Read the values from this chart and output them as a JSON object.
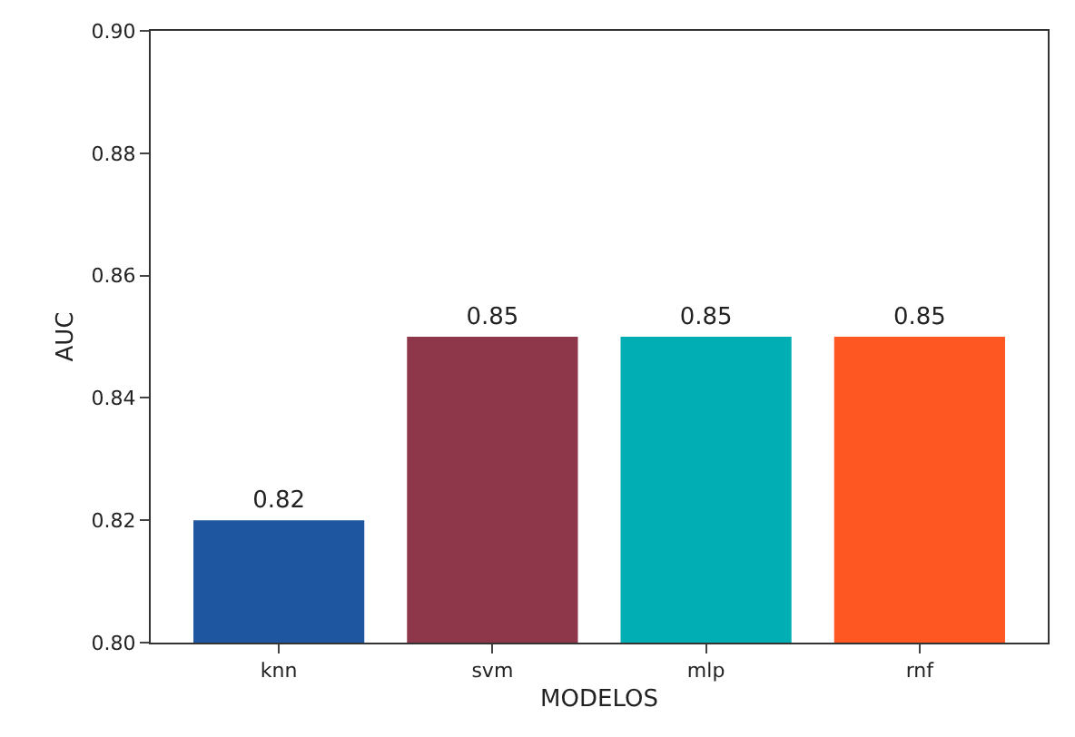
{
  "chart_data": {
    "type": "bar",
    "xlabel": "MODELOS",
    "ylabel": "AUC",
    "categories": [
      "knn",
      "svm",
      "mlp",
      "rnf"
    ],
    "values": [
      0.82,
      0.85,
      0.85,
      0.85
    ],
    "colors": [
      "#1f56a0",
      "#8e364a",
      "#00aeb4",
      "#ff5722"
    ],
    "ylim": [
      0.8,
      0.9
    ],
    "yticks": [
      {
        "value": 0.8,
        "label": "0.80"
      },
      {
        "value": 0.82,
        "label": "0.82"
      },
      {
        "value": 0.84,
        "label": "0.84"
      },
      {
        "value": 0.86,
        "label": "0.86"
      },
      {
        "value": 0.88,
        "label": "0.88"
      },
      {
        "value": 0.9,
        "label": "0.90"
      }
    ],
    "data_labels": true
  }
}
